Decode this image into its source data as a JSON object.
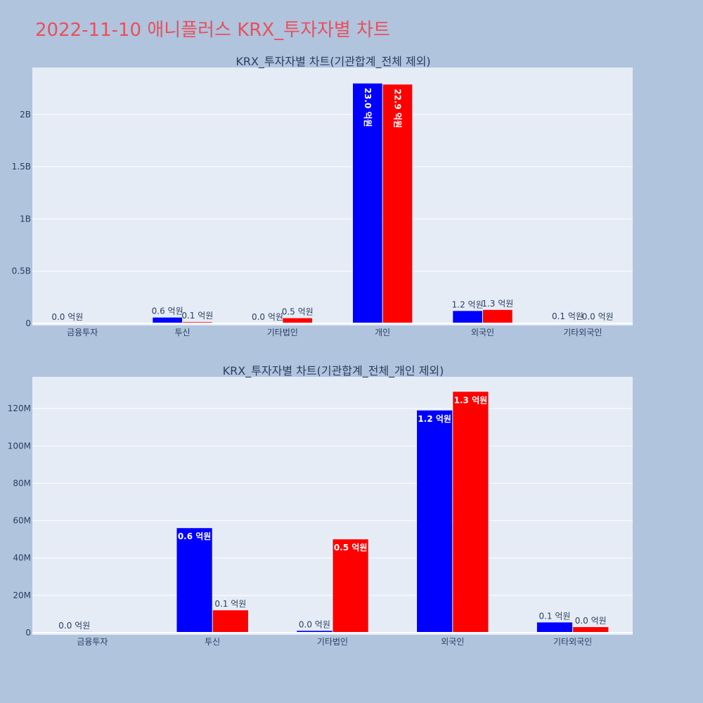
{
  "page": {
    "title": "2022-11-10 애니플러스 KRX_투자자별 차트"
  },
  "chart_data": [
    {
      "type": "bar",
      "title": "KRX_투자자별 차트(기관합계_전체 제외)",
      "categories": [
        "금융투자",
        "투신",
        "기타법인",
        "개인",
        "외국인",
        "기타외국인"
      ],
      "series": [
        {
          "color": "#0000ff",
          "values": [
            400000,
            56000000,
            1000000,
            2297000000,
            119000000,
            5500000
          ],
          "labels": [
            "0.0 억원",
            "0.6 억원",
            "0.0 억원",
            "23.0 억원",
            "1.2 억원",
            "0.1 억원"
          ]
        },
        {
          "color": "#ff0000",
          "values": [
            0,
            12000000,
            50000000,
            2287000000,
            129000000,
            3000000
          ],
          "labels": [
            "",
            "0.1 억원",
            "0.5 억원",
            "22.9 억원",
            "1.3 억원",
            "0.0 억원"
          ]
        }
      ],
      "ylim": [
        0,
        2450000000
      ],
      "yticks": [
        0,
        500000000,
        1000000000,
        1500000000,
        2000000000
      ],
      "ytick_labels": [
        "0",
        "0.5B",
        "1B",
        "1.5B",
        "2B"
      ],
      "grid": true
    },
    {
      "type": "bar",
      "title": "KRX_투자자별 차트(기관합계_전체_개인 제외)",
      "categories": [
        "금융투자",
        "투신",
        "기타법인",
        "외국인",
        "기타외국인"
      ],
      "series": [
        {
          "color": "#0000ff",
          "values": [
            400000,
            56000000,
            1000000,
            119000000,
            5500000
          ],
          "labels": [
            "0.0 억원",
            "0.6 억원",
            "0.0 억원",
            "1.2 억원",
            "0.1 억원"
          ]
        },
        {
          "color": "#ff0000",
          "values": [
            0,
            12000000,
            50000000,
            129000000,
            3000000
          ],
          "labels": [
            "",
            "0.1 억원",
            "0.5 억원",
            "1.3 억원",
            "0.0 억원"
          ]
        }
      ],
      "ylim": [
        0,
        137000000
      ],
      "yticks": [
        0,
        20000000,
        40000000,
        60000000,
        80000000,
        100000000,
        120000000
      ],
      "ytick_labels": [
        "0",
        "20M",
        "40M",
        "60M",
        "80M",
        "100M",
        "120M"
      ],
      "grid": true
    }
  ]
}
